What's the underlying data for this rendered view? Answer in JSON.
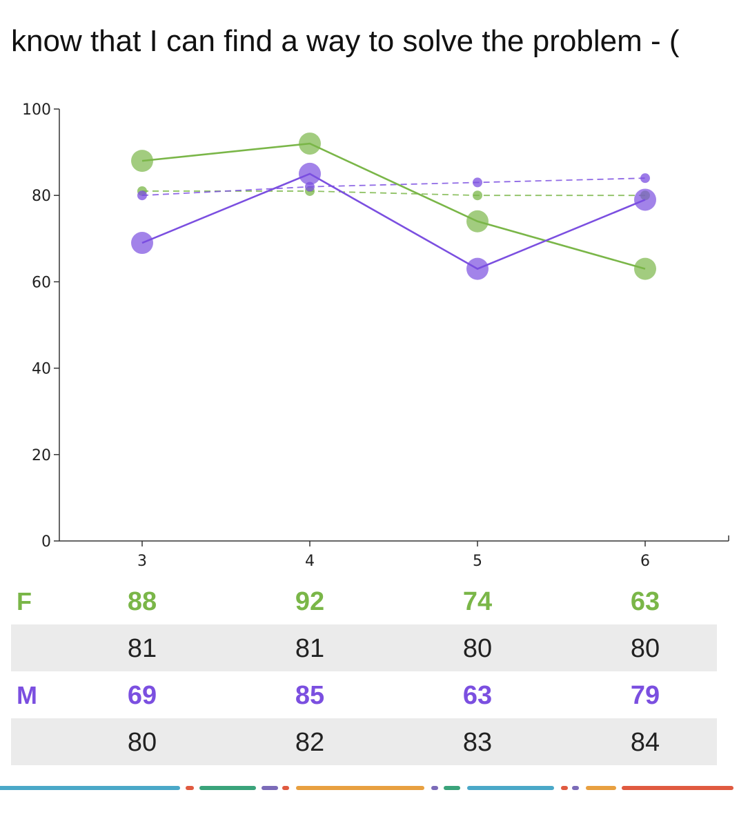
{
  "title": "know that I can find a way to solve the problem - (",
  "colors": {
    "F": "#7ab648",
    "M": "#7b4fe0",
    "ref": "#555555"
  },
  "chart_data": {
    "type": "line",
    "x": [
      3,
      4,
      5,
      6
    ],
    "ylim": [
      0,
      100
    ],
    "yticks": [
      0,
      20,
      40,
      60,
      80,
      100
    ],
    "series": [
      {
        "name": "F",
        "values": [
          88,
          92,
          74,
          63
        ],
        "color": "#7ab648",
        "style": "solid"
      },
      {
        "values": [
          81,
          81,
          80,
          80
        ],
        "color": "#7ab648",
        "style": "dashed"
      },
      {
        "name": "M",
        "values": [
          69,
          85,
          63,
          79
        ],
        "color": "#7b4fe0",
        "style": "solid"
      },
      {
        "values": [
          80,
          82,
          83,
          84
        ],
        "color": "#7b4fe0",
        "style": "dashed"
      }
    ]
  },
  "table": {
    "rows": [
      {
        "label": "F",
        "values": [
          "88",
          "92",
          "74",
          "63"
        ],
        "color": "#7ab648",
        "bold": true,
        "gray": false
      },
      {
        "label": "",
        "values": [
          "81",
          "81",
          "80",
          "80"
        ],
        "color": "#222222",
        "bold": false,
        "gray": true
      },
      {
        "label": "M",
        "values": [
          "69",
          "85",
          "63",
          "79"
        ],
        "color": "#7b4fe0",
        "bold": true,
        "gray": false
      },
      {
        "label": "",
        "values": [
          "80",
          "82",
          "83",
          "84"
        ],
        "color": "#222222",
        "bold": false,
        "gray": true
      }
    ]
  },
  "footer_colors": [
    "#4aa8c8",
    "#e05a40",
    "#3aa37a",
    "#7b6bb8",
    "#e05a40",
    "#e8a040",
    "#7b6bb8",
    "#3aa37a",
    "#4aa8c8",
    "#e05a40",
    "#7b6bb8",
    "#e8a040",
    "#e05a40"
  ]
}
